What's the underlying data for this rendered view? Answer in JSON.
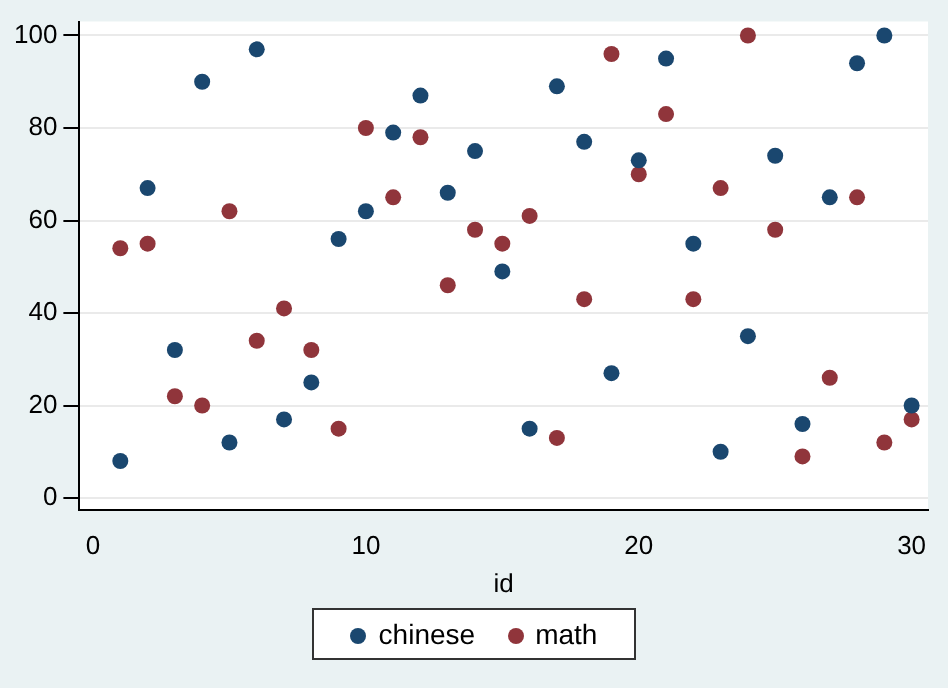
{
  "chart_data": {
    "type": "scatter",
    "xlabel": "id",
    "x": [
      1,
      2,
      3,
      4,
      5,
      6,
      7,
      8,
      9,
      10,
      11,
      12,
      13,
      14,
      15,
      16,
      17,
      18,
      19,
      20,
      21,
      22,
      23,
      24,
      25,
      26,
      27,
      28,
      29,
      30
    ],
    "series": [
      {
        "name": "chinese",
        "color": "#1a476f",
        "values": [
          8,
          67,
          32,
          90,
          12,
          97,
          17,
          25,
          56,
          62,
          79,
          87,
          66,
          75,
          49,
          15,
          89,
          77,
          27,
          73,
          95,
          55,
          10,
          35,
          74,
          16,
          65,
          94,
          100,
          20
        ]
      },
      {
        "name": "math",
        "color": "#90353b",
        "values": [
          54,
          55,
          22,
          20,
          62,
          34,
          41,
          32,
          15,
          80,
          65,
          78,
          46,
          58,
          55,
          61,
          13,
          43,
          96,
          70,
          83,
          43,
          67,
          100,
          58,
          9,
          26,
          65,
          12,
          17
        ]
      }
    ],
    "xlim": [
      -0.5,
      30.6
    ],
    "xticks": [
      0,
      10,
      20,
      30
    ],
    "ylim": [
      -2.5,
      103
    ],
    "yticks": [
      0,
      20,
      40,
      60,
      80,
      100
    ],
    "grid": "y",
    "legend": "bottom",
    "marker": "circle"
  }
}
